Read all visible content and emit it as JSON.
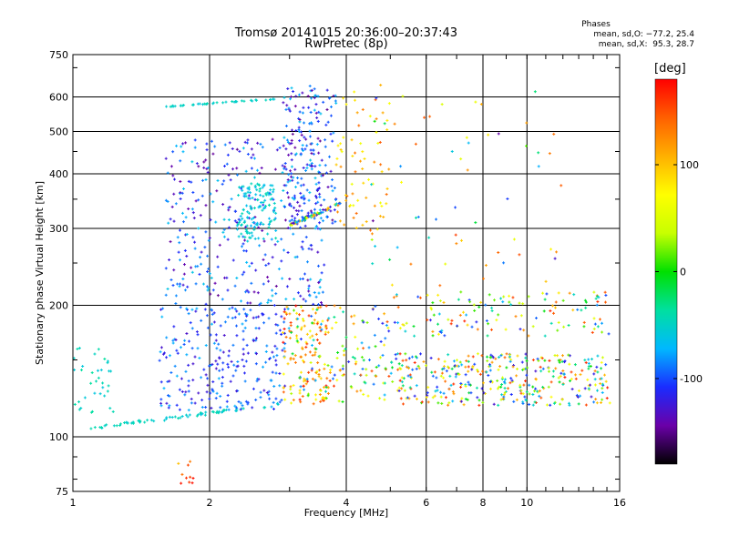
{
  "title_line1": "Tromsø 20141015 20:36:00–20:37:43",
  "title_line2": "RwPretec (8p)",
  "phase_stats": {
    "heading": "Phases",
    "line_o": "mean, sd,O: −77.2, 25.4",
    "line_x": "mean, sd,X:  95.3, 28.7"
  },
  "chart_data": {
    "type": "scatter",
    "title": "Tromsø 20141015 20:36:00–20:37:43",
    "subtitle": "RwPretec (8p)",
    "xlabel": "Frequency [MHz]",
    "ylabel": "Stationary phase Virtual Height [km]",
    "x_scale": "log",
    "y_scale": "log",
    "xlim": [
      1,
      16
    ],
    "ylim": [
      75,
      750
    ],
    "x_ticks": [
      1,
      2,
      4,
      6,
      8,
      10,
      16
    ],
    "x_tick_labels": [
      "1",
      "2",
      "4",
      "6",
      "8",
      "10",
      "16"
    ],
    "y_ticks": [
      75,
      100,
      200,
      300,
      400,
      500,
      600,
      750
    ],
    "y_tick_labels": [
      "75",
      "100",
      "200",
      "300",
      "400",
      "500",
      "600",
      "750"
    ],
    "grid": true,
    "colorbar": {
      "label": "[deg]",
      "range": [
        -180,
        180
      ],
      "ticks": [
        100,
        0,
        -100
      ],
      "tick_labels": [
        "100",
        "0",
        "-100"
      ],
      "colors": [
        "#000000",
        "#6a00a8",
        "#1a2cff",
        "#00b8ff",
        "#00e0a0",
        "#00e000",
        "#c8ff00",
        "#ffff00",
        "#ffb000",
        "#ff6000",
        "#ff0000"
      ]
    },
    "clusters": [
      {
        "name": "o-trace-low",
        "x": [
          1.05,
          2.9
        ],
        "y": [
          104,
          120
        ],
        "phase": [
          -60,
          -40
        ],
        "n": 70,
        "shape": "curve"
      },
      {
        "name": "low-freq-band",
        "x": [
          1.0,
          1.25
        ],
        "y": [
          112,
          160
        ],
        "phase": [
          -60,
          -35
        ],
        "n": 35
      },
      {
        "name": "e-f1-lower",
        "x": [
          1.55,
          3.0
        ],
        "y": [
          115,
          200
        ],
        "phase": [
          -130,
          -70
        ],
        "n": 260
      },
      {
        "name": "f1-lower-warm",
        "x": [
          2.9,
          3.7
        ],
        "y": [
          118,
          200
        ],
        "phase": [
          60,
          180
        ],
        "n": 110
      },
      {
        "name": "f1-lower-mixed",
        "x": [
          3.0,
          5.0
        ],
        "y": [
          120,
          200
        ],
        "phase": [
          -120,
          160
        ],
        "n": 160
      },
      {
        "name": "f2-mid",
        "x": [
          1.6,
          3.6
        ],
        "y": [
          200,
          480
        ],
        "phase": [
          -150,
          -60
        ],
        "n": 380
      },
      {
        "name": "f2-cyan-patch",
        "x": [
          2.3,
          2.8
        ],
        "y": [
          280,
          380
        ],
        "phase": [
          -70,
          -40
        ],
        "n": 120
      },
      {
        "name": "f2-upper",
        "x": [
          2.9,
          3.8
        ],
        "y": [
          300,
          640
        ],
        "phase": [
          -150,
          -60
        ],
        "n": 180
      },
      {
        "name": "x-trace",
        "x": [
          3.0,
          3.9
        ],
        "y": [
          305,
          345
        ],
        "phase": [
          -140,
          140
        ],
        "n": 60,
        "shape": "line"
      },
      {
        "name": "x-upper-band",
        "x": [
          3.8,
          5.0
        ],
        "y": [
          290,
          640
        ],
        "phase": [
          60,
          150
        ],
        "n": 70
      },
      {
        "name": "high-freq-lower",
        "x": [
          5.0,
          15.3
        ],
        "y": [
          118,
          155
        ],
        "phase": [
          -130,
          170
        ],
        "n": 380
      },
      {
        "name": "high-freq-200",
        "x": [
          5.0,
          15.3
        ],
        "y": [
          170,
          215
        ],
        "phase": [
          -120,
          170
        ],
        "n": 130
      },
      {
        "name": "high-freq-sparse",
        "x": [
          4.5,
          12.0
        ],
        "y": [
          220,
          620
        ],
        "phase": [
          -150,
          160
        ],
        "n": 60
      },
      {
        "name": "band-580",
        "x": [
          1.6,
          2.8
        ],
        "y": [
          570,
          595
        ],
        "phase": [
          -60,
          -40
        ],
        "n": 40,
        "shape": "line"
      },
      {
        "name": "low-strays",
        "x": [
          1.7,
          1.85
        ],
        "y": [
          78,
          88
        ],
        "phase": [
          100,
          180
        ],
        "n": 10
      }
    ]
  }
}
